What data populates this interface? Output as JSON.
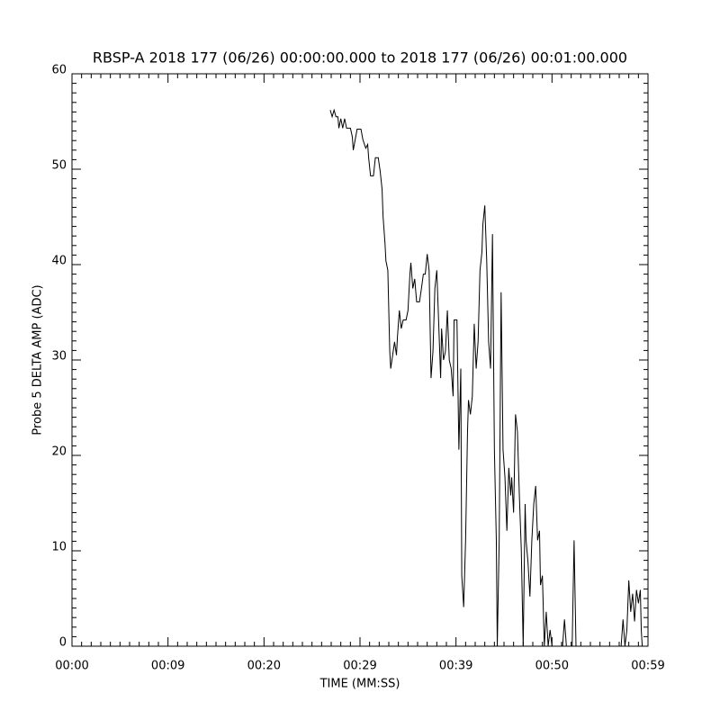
{
  "chart_data": {
    "type": "line",
    "title": "RBSP-A 2018 177 (06/26) 00:00:00.000 to 2018 177 (06/26) 00:01:00.000",
    "x_label": "TIME (MM:SS)",
    "y_label": "Probe 5 DELTA AMP (ADC)",
    "color": "#000000",
    "xlim": [
      0,
      60
    ],
    "xticks": [
      {
        "value": 0,
        "label": "00:00"
      },
      {
        "value": 10,
        "label": "00:09"
      },
      {
        "value": 20,
        "label": "00:20"
      },
      {
        "value": 30,
        "label": "00:29"
      },
      {
        "value": 40,
        "label": "00:39"
      },
      {
        "value": 50,
        "label": "00:50"
      },
      {
        "value": 60,
        "label": "00:59"
      }
    ],
    "ylim": [
      0,
      60
    ],
    "yticks": [
      0,
      10,
      20,
      30,
      40,
      50,
      60
    ],
    "x": [
      26.9,
      27.1,
      27.3,
      27.5,
      27.7,
      27.8,
      28.0,
      28.2,
      28.4,
      28.6,
      29.0,
      29.2,
      29.3,
      29.5,
      29.7,
      30.1,
      30.3,
      30.6,
      30.8,
      30.9,
      31.1,
      31.4,
      31.6,
      31.9,
      32.1,
      32.3,
      32.4,
      32.6,
      32.7,
      32.9,
      33.1,
      33.2,
      33.4,
      33.6,
      33.8,
      33.9,
      34.1,
      34.3,
      34.5,
      34.8,
      35.0,
      35.2,
      35.3,
      35.5,
      35.7,
      35.9,
      36.2,
      36.4,
      36.6,
      36.8,
      37.0,
      37.2,
      37.4,
      37.6,
      37.8,
      38.0,
      38.2,
      38.4,
      38.5,
      38.7,
      38.9,
      39.1,
      39.3,
      39.5,
      39.7,
      39.8,
      40.1,
      40.3,
      40.5,
      40.6,
      40.8,
      41.0,
      41.2,
      41.3,
      41.5,
      41.7,
      41.9,
      42.1,
      42.3,
      42.5,
      42.7,
      42.8,
      43.0,
      43.2,
      43.4,
      43.6,
      43.8,
      44.0,
      44.2,
      44.3,
      44.5,
      44.7,
      44.9,
      45.1,
      45.3,
      45.5,
      45.7,
      45.8,
      46.0,
      46.2,
      46.4,
      46.6,
      46.8,
      47.0,
      47.2,
      47.3,
      47.5,
      47.7,
      47.9,
      48.1,
      48.3,
      48.5,
      48.7,
      48.8,
      49.0,
      49.2,
      49.4,
      49.6,
      49.8,
      50.0,
      50.7,
      51.1,
      51.3,
      51.5,
      52.1,
      52.3,
      52.5,
      55.3,
      57.2,
      57.4,
      57.6,
      57.8,
      58.0,
      58.2,
      58.4,
      58.6,
      58.8,
      59.0,
      59.2,
      59.3,
      59.4
    ],
    "values": [
      56.2,
      55.5,
      56.2,
      55.5,
      55.5,
      54.3,
      55.3,
      54.3,
      55.3,
      54.3,
      54.3,
      53.4,
      52,
      53.1,
      54.2,
      54.2,
      53.1,
      52.2,
      52.6,
      51.2,
      49.3,
      49.3,
      51.2,
      51.2,
      49.8,
      47.9,
      45.1,
      42.3,
      40.4,
      39.4,
      30.9,
      29.1,
      30.5,
      31.9,
      30.5,
      32.4,
      35.2,
      33.3,
      34.2,
      34.2,
      35.2,
      39.0,
      40.2,
      37.5,
      38.5,
      36.1,
      36.1,
      37.5,
      39.0,
      39.0,
      41.1,
      39.4,
      28.1,
      30.9,
      37.5,
      39.4,
      33.8,
      28.1,
      33.3,
      30.0,
      30.9,
      35.2,
      30.0,
      29.1,
      26.2,
      34.2,
      34.2,
      20.6,
      29.1,
      7.4,
      4.1,
      11.1,
      22.5,
      25.8,
      24.3,
      26.2,
      33.8,
      29.1,
      31.9,
      39.4,
      41.3,
      44.2,
      46.2,
      40.4,
      31.9,
      29.1,
      43.2,
      20.6,
      11.1,
      0,
      11.1,
      37.1,
      20.6,
      17.7,
      12.1,
      18.7,
      15.8,
      17.7,
      14.0,
      24.3,
      22.5,
      15.8,
      10.2,
      0,
      14.9,
      11.1,
      8.8,
      5.2,
      11.1,
      14.9,
      16.8,
      11.1,
      12.1,
      6.4,
      7.4,
      0,
      3.6,
      0,
      1.7,
      0,
      0,
      0,
      2.8,
      0,
      0,
      11.1,
      0,
      0,
      0,
      2.8,
      0,
      1.7,
      6.9,
      3.6,
      5.5,
      2.6,
      5.9,
      4.5,
      5.9,
      1.7,
      0
    ]
  }
}
